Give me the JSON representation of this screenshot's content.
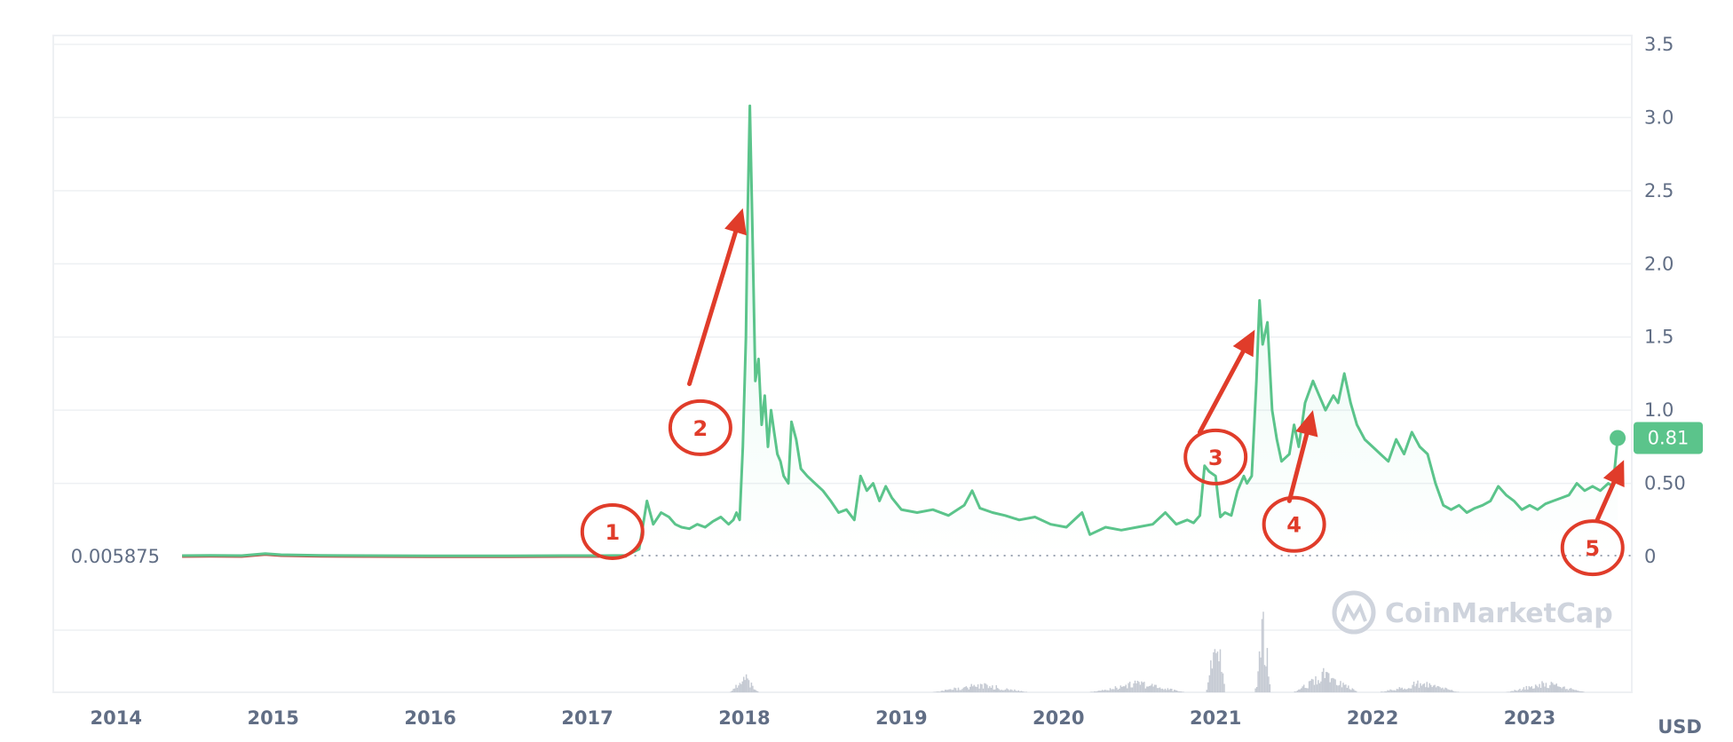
{
  "chart_data": {
    "type": "line",
    "currency_label": "USD",
    "y_axis": {
      "ticks": [
        {
          "value": 0,
          "label": "0"
        },
        {
          "value": 0.5,
          "label": "0.50"
        },
        {
          "value": 1.0,
          "label": "1.0"
        },
        {
          "value": 1.5,
          "label": "1.5"
        },
        {
          "value": 2.0,
          "label": "2.0"
        },
        {
          "value": 2.5,
          "label": "2.5"
        },
        {
          "value": 3.0,
          "label": "3.0"
        },
        {
          "value": 3.5,
          "label": "3.5"
        }
      ],
      "range": [
        0,
        3.5
      ],
      "position": "right"
    },
    "x_axis": {
      "ticks": [
        "2014",
        "2015",
        "2016",
        "2017",
        "2018",
        "2019",
        "2020",
        "2021",
        "2022",
        "2023"
      ],
      "range": [
        2013.6,
        2023.65
      ]
    },
    "baseline": {
      "value": 0.005875,
      "label": "0.005875"
    },
    "current": {
      "value": 0.81,
      "label": "0.81"
    },
    "colors": {
      "line": "#5bc48b",
      "area_top": "#16c784",
      "baseline_line": "#c0504d",
      "current_badge": "#5bc48b",
      "annotation": "#e03c2a",
      "volume": "#c5cad3",
      "watermark": "#cfd4dd"
    },
    "price_series": {
      "name": "price",
      "points": [
        [
          2014.42,
          0.006
        ],
        [
          2014.6,
          0.007
        ],
        [
          2014.8,
          0.006
        ],
        [
          2014.95,
          0.02
        ],
        [
          2015.05,
          0.012
        ],
        [
          2015.3,
          0.008
        ],
        [
          2015.6,
          0.006
        ],
        [
          2016.0,
          0.005
        ],
        [
          2016.5,
          0.005
        ],
        [
          2016.9,
          0.006
        ],
        [
          2017.1,
          0.006
        ],
        [
          2017.25,
          0.008
        ],
        [
          2017.33,
          0.05
        ],
        [
          2017.38,
          0.38
        ],
        [
          2017.42,
          0.22
        ],
        [
          2017.47,
          0.3
        ],
        [
          2017.52,
          0.27
        ],
        [
          2017.56,
          0.22
        ],
        [
          2017.6,
          0.2
        ],
        [
          2017.65,
          0.19
        ],
        [
          2017.7,
          0.22
        ],
        [
          2017.75,
          0.2
        ],
        [
          2017.8,
          0.24
        ],
        [
          2017.85,
          0.27
        ],
        [
          2017.9,
          0.22
        ],
        [
          2017.93,
          0.25
        ],
        [
          2017.95,
          0.3
        ],
        [
          2017.97,
          0.25
        ],
        [
          2017.99,
          0.75
        ],
        [
          2018.01,
          1.5
        ],
        [
          2018.02,
          2.3
        ],
        [
          2018.035,
          3.08
        ],
        [
          2018.05,
          2.3
        ],
        [
          2018.07,
          1.2
        ],
        [
          2018.09,
          1.35
        ],
        [
          2018.11,
          0.9
        ],
        [
          2018.13,
          1.1
        ],
        [
          2018.15,
          0.75
        ],
        [
          2018.17,
          1.0
        ],
        [
          2018.19,
          0.85
        ],
        [
          2018.21,
          0.7
        ],
        [
          2018.23,
          0.65
        ],
        [
          2018.25,
          0.55
        ],
        [
          2018.28,
          0.5
        ],
        [
          2018.3,
          0.92
        ],
        [
          2018.33,
          0.8
        ],
        [
          2018.36,
          0.6
        ],
        [
          2018.4,
          0.55
        ],
        [
          2018.45,
          0.5
        ],
        [
          2018.5,
          0.45
        ],
        [
          2018.55,
          0.38
        ],
        [
          2018.6,
          0.3
        ],
        [
          2018.65,
          0.32
        ],
        [
          2018.7,
          0.25
        ],
        [
          2018.74,
          0.55
        ],
        [
          2018.78,
          0.45
        ],
        [
          2018.82,
          0.5
        ],
        [
          2018.86,
          0.38
        ],
        [
          2018.9,
          0.48
        ],
        [
          2018.94,
          0.4
        ],
        [
          2019.0,
          0.32
        ],
        [
          2019.1,
          0.3
        ],
        [
          2019.2,
          0.32
        ],
        [
          2019.3,
          0.28
        ],
        [
          2019.4,
          0.35
        ],
        [
          2019.45,
          0.45
        ],
        [
          2019.5,
          0.33
        ],
        [
          2019.58,
          0.3
        ],
        [
          2019.66,
          0.28
        ],
        [
          2019.75,
          0.25
        ],
        [
          2019.85,
          0.27
        ],
        [
          2019.95,
          0.22
        ],
        [
          2020.05,
          0.2
        ],
        [
          2020.15,
          0.3
        ],
        [
          2020.2,
          0.15
        ],
        [
          2020.3,
          0.2
        ],
        [
          2020.4,
          0.18
        ],
        [
          2020.5,
          0.2
        ],
        [
          2020.6,
          0.22
        ],
        [
          2020.68,
          0.3
        ],
        [
          2020.75,
          0.22
        ],
        [
          2020.82,
          0.25
        ],
        [
          2020.86,
          0.23
        ],
        [
          2020.9,
          0.28
        ],
        [
          2020.93,
          0.62
        ],
        [
          2020.96,
          0.58
        ],
        [
          2021.0,
          0.55
        ],
        [
          2021.03,
          0.27
        ],
        [
          2021.06,
          0.3
        ],
        [
          2021.1,
          0.28
        ],
        [
          2021.14,
          0.45
        ],
        [
          2021.18,
          0.55
        ],
        [
          2021.2,
          0.5
        ],
        [
          2021.23,
          0.55
        ],
        [
          2021.26,
          1.2
        ],
        [
          2021.28,
          1.75
        ],
        [
          2021.3,
          1.45
        ],
        [
          2021.33,
          1.6
        ],
        [
          2021.36,
          1.0
        ],
        [
          2021.39,
          0.8
        ],
        [
          2021.42,
          0.65
        ],
        [
          2021.47,
          0.7
        ],
        [
          2021.5,
          0.9
        ],
        [
          2021.53,
          0.75
        ],
        [
          2021.57,
          1.05
        ],
        [
          2021.62,
          1.2
        ],
        [
          2021.66,
          1.1
        ],
        [
          2021.7,
          1.0
        ],
        [
          2021.75,
          1.1
        ],
        [
          2021.78,
          1.05
        ],
        [
          2021.82,
          1.25
        ],
        [
          2021.86,
          1.05
        ],
        [
          2021.9,
          0.9
        ],
        [
          2021.95,
          0.8
        ],
        [
          2022.0,
          0.75
        ],
        [
          2022.05,
          0.7
        ],
        [
          2022.1,
          0.65
        ],
        [
          2022.15,
          0.8
        ],
        [
          2022.2,
          0.7
        ],
        [
          2022.25,
          0.85
        ],
        [
          2022.3,
          0.75
        ],
        [
          2022.35,
          0.7
        ],
        [
          2022.4,
          0.5
        ],
        [
          2022.45,
          0.35
        ],
        [
          2022.5,
          0.32
        ],
        [
          2022.55,
          0.35
        ],
        [
          2022.6,
          0.3
        ],
        [
          2022.65,
          0.33
        ],
        [
          2022.7,
          0.35
        ],
        [
          2022.75,
          0.38
        ],
        [
          2022.8,
          0.48
        ],
        [
          2022.85,
          0.42
        ],
        [
          2022.9,
          0.38
        ],
        [
          2022.95,
          0.32
        ],
        [
          2023.0,
          0.35
        ],
        [
          2023.05,
          0.32
        ],
        [
          2023.1,
          0.36
        ],
        [
          2023.15,
          0.38
        ],
        [
          2023.2,
          0.4
        ],
        [
          2023.25,
          0.42
        ],
        [
          2023.3,
          0.5
        ],
        [
          2023.35,
          0.45
        ],
        [
          2023.4,
          0.48
        ],
        [
          2023.45,
          0.45
        ],
        [
          2023.5,
          0.5
        ],
        [
          2023.53,
          0.48
        ],
        [
          2023.56,
          0.81
        ]
      ]
    },
    "volume_series": {
      "name": "volume",
      "clusters": [
        {
          "x": 2018.0,
          "max": 0.2,
          "width": 0.18
        },
        {
          "x": 2019.5,
          "max": 0.1,
          "width": 0.6
        },
        {
          "x": 2020.5,
          "max": 0.12,
          "width": 0.6
        },
        {
          "x": 2021.0,
          "max": 0.75,
          "width": 0.12
        },
        {
          "x": 2021.3,
          "max": 0.85,
          "width": 0.1
        },
        {
          "x": 2021.7,
          "max": 0.25,
          "width": 0.4
        },
        {
          "x": 2022.3,
          "max": 0.12,
          "width": 0.5
        },
        {
          "x": 2023.1,
          "max": 0.12,
          "width": 0.5
        }
      ]
    },
    "annotations": [
      {
        "label": "1",
        "circle": [
          2017.16,
          0.17
        ],
        "arrow_from": [
          2017.2,
          0.17
        ],
        "arrow_to": [
          2017.2,
          0.17
        ]
      },
      {
        "label": "2",
        "circle": [
          2017.72,
          0.88
        ],
        "arrow_from": [
          2017.65,
          1.18
        ],
        "arrow_to": [
          2017.99,
          2.38
        ]
      },
      {
        "label": "3",
        "circle": [
          2021.0,
          0.68
        ],
        "arrow_from": [
          2020.9,
          0.85
        ],
        "arrow_to": [
          2021.25,
          1.55
        ]
      },
      {
        "label": "4",
        "circle": [
          2021.5,
          0.22
        ],
        "arrow_from": [
          2021.47,
          0.38
        ],
        "arrow_to": [
          2021.62,
          1.0
        ]
      },
      {
        "label": "5",
        "circle": [
          2023.4,
          0.06
        ],
        "arrow_from": [
          2023.43,
          0.25
        ],
        "arrow_to": [
          2023.6,
          0.66
        ]
      }
    ],
    "watermark": "CoinMarketCap",
    "grid": true,
    "legend": "none"
  }
}
